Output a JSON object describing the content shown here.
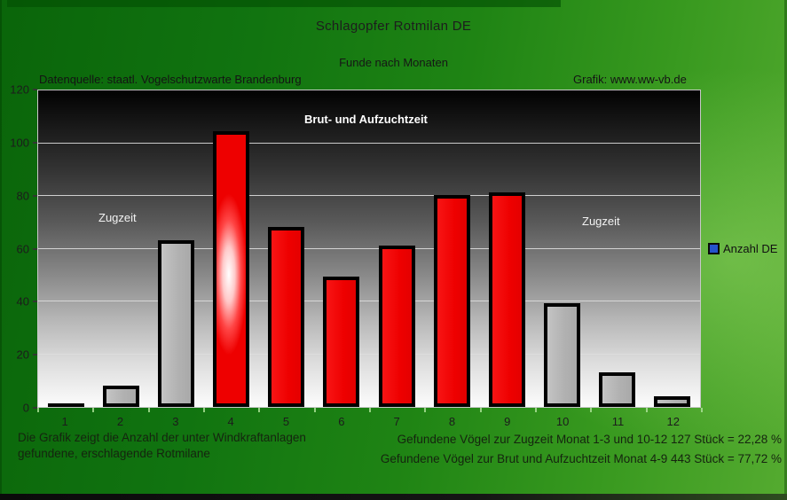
{
  "header": {
    "title": "Schlagopfer Rotmilan DE",
    "subtitle": "Funde nach Monaten",
    "source": "Datenquelle: staatl. Vogelschutzwarte Brandenburg",
    "credit": "Grafik: www.ww-vb.de"
  },
  "chart_data": {
    "type": "bar",
    "title": "Schlagopfer Rotmilan DE",
    "subtitle": "Funde nach Monaten",
    "categories": [
      "1",
      "2",
      "3",
      "4",
      "5",
      "6",
      "7",
      "8",
      "9",
      "10",
      "11",
      "12"
    ],
    "series": [
      {
        "name": "Anzahl DE",
        "values": [
          0,
          8,
          63,
          104,
          68,
          49,
          61,
          80,
          81,
          39,
          13,
          4
        ]
      }
    ],
    "xlabel": "",
    "ylabel": "",
    "ylim": [
      0,
      120
    ],
    "yticks": [
      0,
      20,
      40,
      60,
      80,
      100,
      120
    ],
    "grid": true,
    "legend_position": "right",
    "breeding_months": [
      4,
      5,
      6,
      7,
      8,
      9
    ],
    "highlight_month": 4,
    "colors": {
      "breeding": "#ee0000",
      "migration": "#b3b3b3",
      "plot_top": "#000000",
      "plot_bottom": "#fcfcfc",
      "background_green_dark": "#0a650a",
      "background_green_light": "#55ab30"
    }
  },
  "annotations": {
    "breeding_label": "Brut- und Aufzuchtzeit",
    "migration_left": "Zugzeit",
    "migration_right": "Zugzeit"
  },
  "legend": {
    "label": "Anzahl DE",
    "marker_color": "#2553cc"
  },
  "footer": {
    "left_line1": "Die Grafik zeigt die Anzahl der unter Windkraftanlagen",
    "left_line2": "gefundene, erschlagende Rotmilane",
    "right_line1": "Gefundene Vögel zur Zugzeit Monat 1-3 und 10-12   127 Stück = 22,28 %",
    "right_line2": "Gefundene Vögel zur Brut und Aufzuchtzeit  Monat 4-9  443 Stück = 77,72 %"
  }
}
